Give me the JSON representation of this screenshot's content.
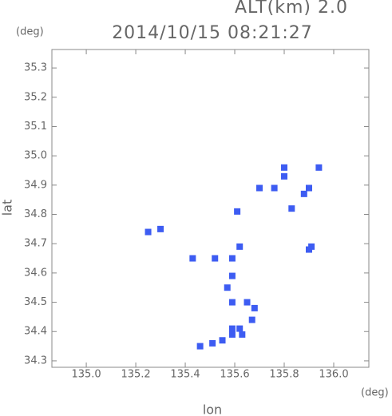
{
  "chart_data": {
    "type": "scatter",
    "title": "2014/10/15 08:21:27",
    "subtitle": "ALT(km) 2.0",
    "x_unit": "(deg)",
    "y_unit": "(deg)",
    "x_label": "lon",
    "y_label": "lat",
    "xlim": [
      134.861,
      136.142
    ],
    "ylim": [
      34.278,
      35.363
    ],
    "xticks": [
      {
        "value": 135.0,
        "label": "135.0"
      },
      135.2,
      135.4,
      135.6,
      135.8,
      {
        "value": 136.0,
        "label": "136.0"
      }
    ],
    "yticks": [
      34.3,
      34.4,
      34.5,
      34.6,
      34.7,
      34.8,
      34.9,
      {
        "value": 35.0,
        "label": "35.0"
      },
      35.1,
      35.2,
      35.3
    ],
    "color": "#3d5cf2",
    "x": [
      135.8,
      135.8,
      135.76,
      135.88,
      135.9,
      135.94,
      135.83,
      135.7,
      135.61,
      135.25,
      135.3,
      135.91,
      135.9,
      135.43,
      135.52,
      135.59,
      135.62,
      135.59,
      135.57,
      135.59,
      135.65,
      135.68,
      135.67,
      135.62,
      135.59,
      135.55,
      135.51,
      135.46,
      135.59,
      135.63
    ],
    "y": [
      34.96,
      34.93,
      34.89,
      34.87,
      34.89,
      34.96,
      34.82,
      34.89,
      34.81,
      34.74,
      34.75,
      34.69,
      34.68,
      34.65,
      34.65,
      34.65,
      34.69,
      34.59,
      34.55,
      34.5,
      34.5,
      34.48,
      34.44,
      34.41,
      34.39,
      34.37,
      34.36,
      34.35,
      34.41,
      34.39
    ]
  }
}
